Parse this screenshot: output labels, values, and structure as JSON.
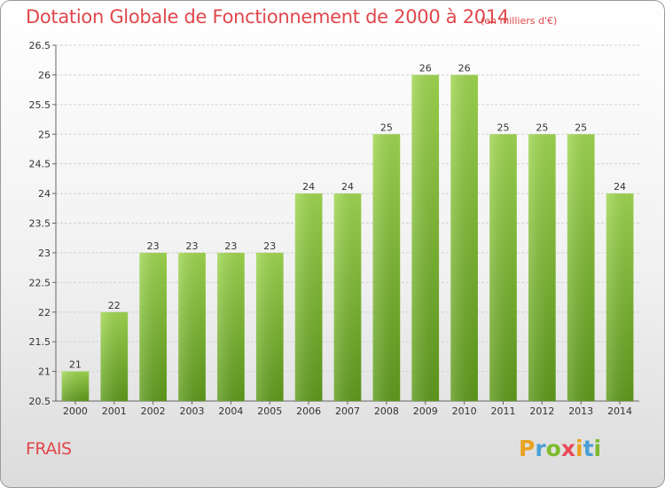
{
  "title": "Dotation Globale de Fonctionnement de 2000 à 2014",
  "unit": "(en milliers d'€)",
  "commune": "FRAIS",
  "logo": {
    "letters": [
      "P",
      "r",
      "o",
      "x",
      "i",
      "t",
      "i"
    ],
    "colors": [
      "#e8a31f",
      "#4aa0d8",
      "#7dbb2c",
      "#e84a5a",
      "#e8a31f",
      "#4aa0d8",
      "#7dbb2c"
    ]
  },
  "chart_data": {
    "type": "bar",
    "categories": [
      "2000",
      "2001",
      "2002",
      "2003",
      "2004",
      "2005",
      "2006",
      "2007",
      "2008",
      "2009",
      "2010",
      "2011",
      "2012",
      "2013",
      "2014"
    ],
    "values": [
      21,
      22,
      23,
      23,
      23,
      23,
      24,
      24,
      25,
      26,
      26,
      25,
      25,
      25,
      24
    ],
    "data_labels": [
      "21",
      "22",
      "23",
      "23",
      "23",
      "23",
      "24",
      "24",
      "25",
      "26",
      "26",
      "25",
      "25",
      "25",
      "24"
    ],
    "ylim": [
      20.5,
      26.5
    ],
    "yticks": [
      "20.5",
      "21",
      "21.5",
      "22",
      "22.5",
      "23",
      "23.5",
      "24",
      "24.5",
      "25",
      "25.5",
      "26",
      "26.5"
    ],
    "grid": true,
    "bar_color": "#7cc242"
  }
}
